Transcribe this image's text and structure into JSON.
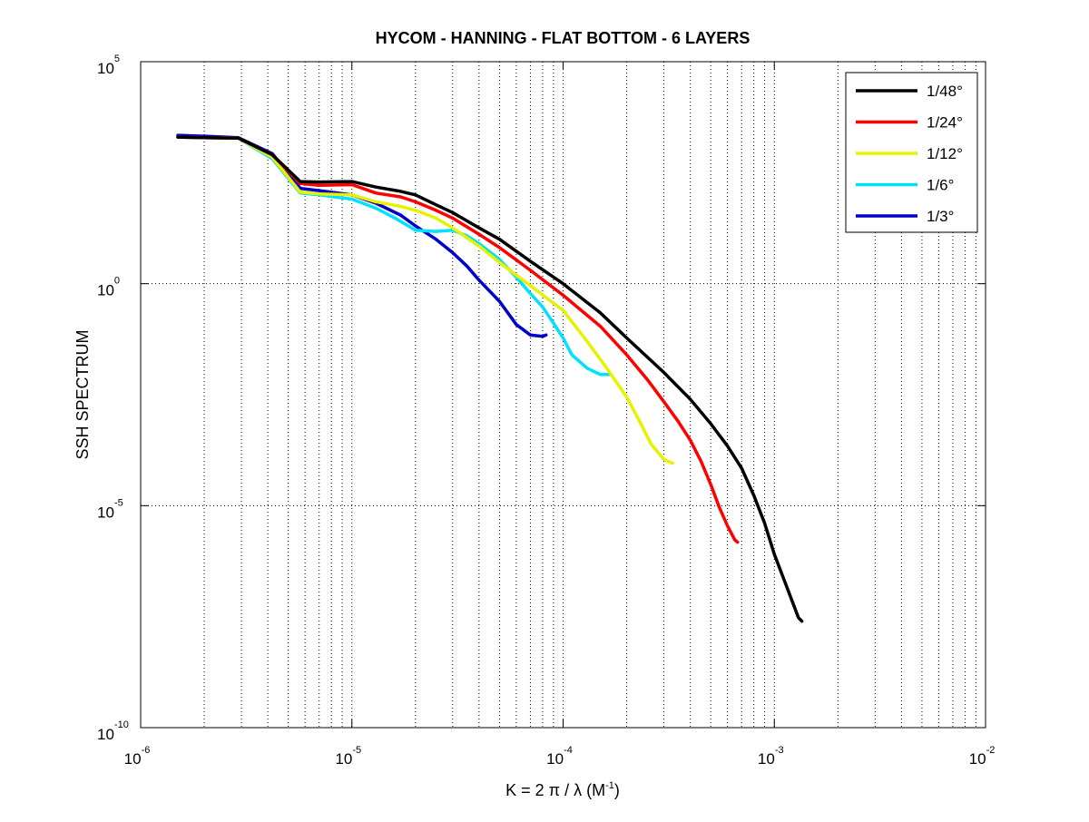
{
  "chart_data": {
    "type": "line",
    "title": "HYCOM - HANNING - FLAT BOTTOM - 6 LAYERS",
    "xlabel": {
      "main": "K = 2 π / λ  (M",
      "sup": "-1",
      "tail": ")"
    },
    "ylabel": "SSH SPECTRUM",
    "xscale": "log",
    "yscale": "log",
    "xlim": [
      1e-06,
      0.01
    ],
    "ylim": [
      1e-10,
      100000.0
    ],
    "grid": true,
    "legend_position": "top-right",
    "x_ticks": [
      {
        "base": "10",
        "exp": "-6",
        "value": 1e-06
      },
      {
        "base": "10",
        "exp": "-5",
        "value": 1e-05
      },
      {
        "base": "10",
        "exp": "-4",
        "value": 0.0001
      },
      {
        "base": "10",
        "exp": "-3",
        "value": 0.001
      },
      {
        "base": "10",
        "exp": "-2",
        "value": 0.01
      }
    ],
    "y_ticks": [
      {
        "base": "10",
        "exp": "-10",
        "value": 1e-10
      },
      {
        "base": "10",
        "exp": "-5",
        "value": 1e-05
      },
      {
        "base": "10",
        "exp": "0",
        "value": 1
      },
      {
        "base": "10",
        "exp": "5",
        "value": 100000.0
      }
    ],
    "series": [
      {
        "name": "1/48°",
        "color": "#000000",
        "points": [
          [
            1.5e-06,
            2000
          ],
          [
            2e-06,
            1950
          ],
          [
            2.9e-06,
            1900
          ],
          [
            4.2e-06,
            800
          ],
          [
            5.7e-06,
            200
          ],
          [
            7e-06,
            195
          ],
          [
            1e-05,
            200
          ],
          [
            1.3e-05,
            150
          ],
          [
            1.7e-05,
            120
          ],
          [
            2e-05,
            100
          ],
          [
            2.5e-05,
            60
          ],
          [
            3e-05,
            40
          ],
          [
            4e-05,
            18
          ],
          [
            5e-05,
            10
          ],
          [
            7e-05,
            3.2
          ],
          [
            0.0001,
            1
          ],
          [
            0.00015,
            0.22
          ],
          [
            0.0002,
            0.06
          ],
          [
            0.0003,
            0.01
          ],
          [
            0.0004,
            0.0025
          ],
          [
            0.0005,
            0.0007
          ],
          [
            0.0006,
            0.00022
          ],
          [
            0.0007,
            7e-05
          ],
          [
            0.0008,
            1.7e-05
          ],
          [
            0.0009,
            4e-06
          ],
          [
            0.001,
            8e-07
          ],
          [
            0.00115,
            1.4e-07
          ],
          [
            0.0013,
            3e-08
          ],
          [
            0.00135,
            2.5e-08
          ]
        ]
      },
      {
        "name": "1/24°",
        "color": "#ff0000",
        "points": [
          [
            1.5e-06,
            2000
          ],
          [
            2e-06,
            1950
          ],
          [
            2.9e-06,
            1900
          ],
          [
            4.2e-06,
            800
          ],
          [
            5.7e-06,
            180
          ],
          [
            7e-06,
            165
          ],
          [
            1e-05,
            170
          ],
          [
            1.3e-05,
            110
          ],
          [
            1.7e-05,
            90
          ],
          [
            2e-05,
            70
          ],
          [
            2.5e-05,
            45
          ],
          [
            3e-05,
            30
          ],
          [
            4e-05,
            13
          ],
          [
            5e-05,
            6.5
          ],
          [
            7e-05,
            2
          ],
          [
            0.0001,
            0.55
          ],
          [
            0.00015,
            0.11
          ],
          [
            0.0002,
            0.025
          ],
          [
            0.00025,
            0.007
          ],
          [
            0.0003,
            0.0022
          ],
          [
            0.00035,
            0.0008
          ],
          [
            0.0004,
            0.0003
          ],
          [
            0.00045,
            0.0001
          ],
          [
            0.0005,
            3e-05
          ],
          [
            0.00055,
            9e-06
          ],
          [
            0.0006,
            3.5e-06
          ],
          [
            0.00065,
            1.7e-06
          ],
          [
            0.00067,
            1.5e-06
          ]
        ]
      },
      {
        "name": "1/12°",
        "color": "#e6f200",
        "points": [
          [
            1.5e-06,
            2000
          ],
          [
            2e-06,
            1950
          ],
          [
            2.9e-06,
            1900
          ],
          [
            4.2e-06,
            700
          ],
          [
            5.7e-06,
            115
          ],
          [
            7e-06,
            105
          ],
          [
            1e-05,
            100
          ],
          [
            1.3e-05,
            70
          ],
          [
            1.7e-05,
            55
          ],
          [
            2e-05,
            45
          ],
          [
            2.5e-05,
            30
          ],
          [
            3e-05,
            18
          ],
          [
            4e-05,
            7
          ],
          [
            5e-05,
            3
          ],
          [
            7e-05,
            0.9
          ],
          [
            0.0001,
            0.25
          ],
          [
            0.00013,
            0.05
          ],
          [
            0.00016,
            0.013
          ],
          [
            0.0002,
            0.0028
          ],
          [
            0.00023,
            0.0008
          ],
          [
            0.00026,
            0.00025
          ],
          [
            0.0003,
            0.00011
          ],
          [
            0.00033,
            9e-05
          ]
        ]
      },
      {
        "name": "1/6°",
        "color": "#00e0ff",
        "points": [
          [
            1.5e-06,
            2000
          ],
          [
            2e-06,
            1950
          ],
          [
            2.9e-06,
            1900
          ],
          [
            4.2e-06,
            650
          ],
          [
            5.7e-06,
            110
          ],
          [
            7e-06,
            100
          ],
          [
            1e-05,
            80
          ],
          [
            1.3e-05,
            50
          ],
          [
            1.6e-05,
            30
          ],
          [
            2e-05,
            16
          ],
          [
            2.5e-05,
            15
          ],
          [
            3e-05,
            16
          ],
          [
            3.5e-05,
            12
          ],
          [
            4e-05,
            8
          ],
          [
            5e-05,
            3.5
          ],
          [
            6e-05,
            1.4
          ],
          [
            7e-05,
            0.6
          ],
          [
            8e-05,
            0.3
          ],
          [
            9e-05,
            0.13
          ],
          [
            0.0001,
            0.06
          ],
          [
            0.00011,
            0.025
          ],
          [
            0.00013,
            0.0125
          ],
          [
            0.00015,
            0.009
          ],
          [
            0.000165,
            0.009
          ]
        ]
      },
      {
        "name": "1/3°",
        "color": "#0000cc",
        "points": [
          [
            1.5e-06,
            2200
          ],
          [
            2e-06,
            2100
          ],
          [
            2.9e-06,
            1950
          ],
          [
            4.2e-06,
            850
          ],
          [
            5.7e-06,
            140
          ],
          [
            7e-06,
            125
          ],
          [
            1e-05,
            100
          ],
          [
            1.3e-05,
            65
          ],
          [
            1.7e-05,
            35
          ],
          [
            2e-05,
            20
          ],
          [
            2.5e-05,
            10
          ],
          [
            3e-05,
            5
          ],
          [
            3.5e-05,
            2.5
          ],
          [
            4e-05,
            1.2
          ],
          [
            5e-05,
            0.4
          ],
          [
            6e-05,
            0.12
          ],
          [
            7e-05,
            0.07
          ],
          [
            8e-05,
            0.065
          ],
          [
            8.3e-05,
            0.07
          ]
        ]
      }
    ]
  }
}
